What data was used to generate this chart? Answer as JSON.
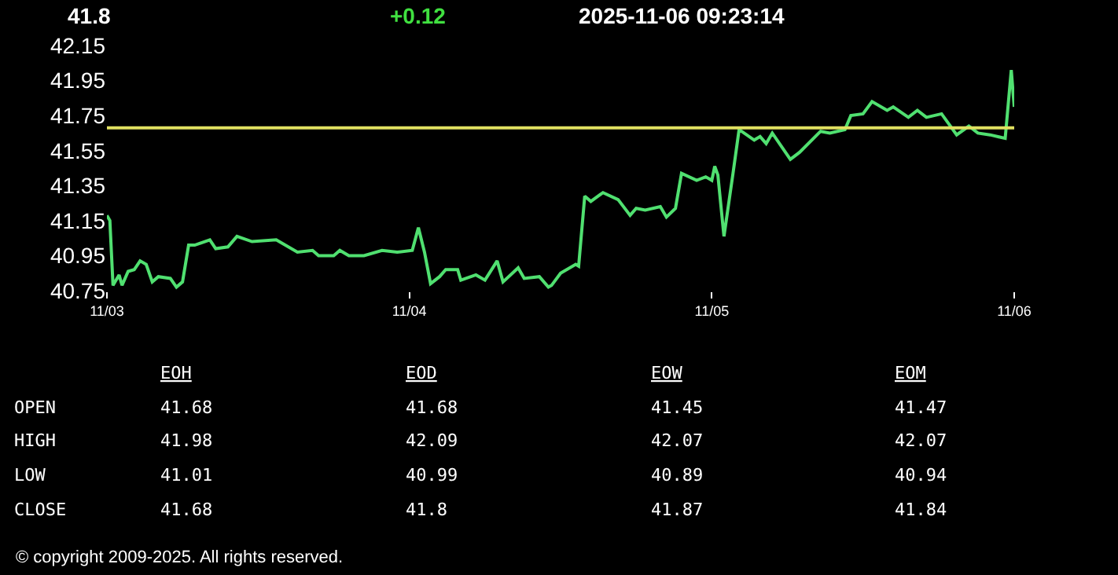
{
  "chart_data": [
    {
      "type": "line",
      "title": "41.8",
      "subtitle": "+0.12",
      "annotations": [
        "2025-11-06 09:23:14",
        "© copyright 2009-2025. All rights reserved."
      ],
      "x": [
        "2025-11-03T00:00",
        "2025-11-03T00:14",
        "2025-11-03T00:29",
        "2025-11-03T00:58",
        "2025-11-03T01:12",
        "2025-11-03T01:41",
        "2025-11-03T02:10",
        "2025-11-03T02:38",
        "2025-11-03T03:07",
        "2025-11-03T03:36",
        "2025-11-03T04:05",
        "2025-11-03T05:02",
        "2025-11-03T05:31",
        "2025-11-03T06:00",
        "2025-11-03T06:29",
        "2025-11-03T06:58",
        "2025-11-03T08:10",
        "2025-11-03T08:38",
        "2025-11-03T09:36",
        "2025-11-03T10:19",
        "2025-11-03T11:31",
        "2025-11-03T13:26",
        "2025-11-03T15:07",
        "2025-11-03T16:19",
        "2025-11-03T16:48",
        "2025-11-03T18:00",
        "2025-11-03T18:29",
        "2025-11-03T19:12",
        "2025-11-03T20:24",
        "2025-11-03T21:50",
        "2025-11-03T23:02",
        "2025-11-04T00:14",
        "2025-11-04T00:43",
        "2025-11-04T01:12",
        "2025-11-04T01:41",
        "2025-11-04T02:24",
        "2025-11-04T02:53",
        "2025-11-04T03:50",
        "2025-11-04T04:05",
        "2025-11-04T05:17",
        "2025-11-04T06:00",
        "2025-11-04T06:58",
        "2025-11-04T07:26",
        "2025-11-04T08:38",
        "2025-11-04T09:07",
        "2025-11-04T10:19",
        "2025-11-04T11:02",
        "2025-11-04T11:17",
        "2025-11-04T12:00",
        "2025-11-04T13:12",
        "2025-11-04T13:26",
        "2025-11-04T13:55",
        "2025-11-04T14:24",
        "2025-11-04T15:22",
        "2025-11-04T16:34",
        "2025-11-04T17:31",
        "2025-11-04T18:00",
        "2025-11-04T18:43",
        "2025-11-04T19:55",
        "2025-11-04T20:24",
        "2025-11-04T21:07",
        "2025-11-04T21:36",
        "2025-11-04T22:48",
        "2025-11-04T23:31",
        "2025-11-05T00:00",
        "2025-11-05T00:14",
        "2025-11-05T00:29",
        "2025-11-05T00:58",
        "2025-11-05T01:41",
        "2025-11-05T02:10",
        "2025-11-05T03:22",
        "2025-11-05T03:50",
        "2025-11-05T04:19",
        "2025-11-05T04:48",
        "2025-11-05T06:14",
        "2025-11-05T06:58",
        "2025-11-05T08:38",
        "2025-11-05T09:22",
        "2025-11-05T10:34",
        "2025-11-05T11:02",
        "2025-11-05T12:00",
        "2025-11-05T12:43",
        "2025-11-05T13:55",
        "2025-11-05T14:24",
        "2025-11-05T15:36",
        "2025-11-05T16:19",
        "2025-11-05T17:02",
        "2025-11-05T18:14",
        "2025-11-05T19:26",
        "2025-11-05T20:24",
        "2025-11-05T21:07",
        "2025-11-05T22:05",
        "2025-11-05T23:17",
        "2025-11-05T23:46",
        "2025-11-06T00:00"
      ],
      "series": [
        {
          "color": "#50e070",
          "values": [
            41.18,
            41.15,
            40.78,
            40.84,
            40.78,
            40.86,
            40.87,
            40.92,
            40.9,
            40.8,
            40.83,
            40.82,
            40.77,
            40.8,
            41.01,
            41.01,
            41.04,
            40.99,
            41.0,
            41.06,
            41.03,
            41.04,
            40.97,
            40.98,
            40.95,
            40.95,
            40.98,
            40.95,
            40.95,
            40.98,
            40.97,
            40.98,
            41.11,
            40.97,
            40.79,
            40.83,
            40.87,
            40.87,
            40.81,
            40.84,
            40.81,
            40.92,
            40.8,
            40.88,
            40.82,
            40.83,
            40.77,
            40.78,
            40.85,
            40.9,
            40.89,
            41.29,
            41.26,
            41.31,
            41.27,
            41.18,
            41.22,
            41.21,
            41.23,
            41.17,
            41.22,
            41.42,
            41.38,
            41.4,
            41.38,
            41.46,
            41.41,
            41.06,
            41.42,
            41.67,
            41.61,
            41.63,
            41.59,
            41.65,
            41.5,
            41.54,
            41.66,
            41.65,
            41.67,
            41.75,
            41.76,
            41.83,
            41.78,
            41.8,
            41.74,
            41.78,
            41.74,
            41.76,
            41.64,
            41.69,
            41.65,
            41.64,
            41.62,
            42.01,
            41.8
          ]
        }
      ],
      "xlim": [
        "2025-11-03",
        "2025-11-06"
      ],
      "ylim": [
        40.75,
        42.15
      ],
      "xticks": [
        {
          "value": "2025-11-03",
          "label": "11/03"
        },
        {
          "value": "2025-11-04",
          "label": "11/04"
        },
        {
          "value": "2025-11-05",
          "label": "11/05"
        },
        {
          "value": "2025-11-06",
          "label": "11/06"
        }
      ],
      "yticks": [
        40.75,
        40.95,
        41.15,
        41.35,
        41.55,
        41.75,
        41.95,
        42.15
      ],
      "ref_lines": [
        {
          "axis": "y",
          "value": 41.68,
          "color": "#e0e060"
        }
      ],
      "grid": false
    },
    {
      "type": "heatmap",
      "data_labels": true,
      "categories": [
        "EOH",
        "EOD",
        "EOW",
        "EOM"
      ],
      "y_categories": [
        "OPEN",
        "HIGH",
        "LOW",
        "CLOSE"
      ],
      "cells": [
        [
          41.68,
          41.68,
          41.45,
          41.47
        ],
        [
          41.98,
          42.09,
          42.07,
          42.07
        ],
        [
          41.01,
          40.99,
          40.89,
          40.94
        ],
        [
          41.68,
          41.8,
          41.87,
          41.84
        ]
      ]
    }
  ]
}
